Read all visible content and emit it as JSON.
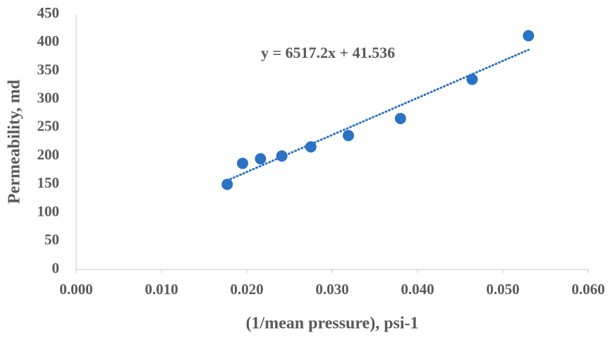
{
  "chart_data": {
    "type": "scatter",
    "x_label": "(1/mean pressure), psi-1",
    "y_label": "Permeability, md",
    "trendline_label": "y = 6517.2x + 41.536",
    "series": [
      {
        "color": "#2a72c4",
        "x": [
          0.0177,
          0.0195,
          0.0216,
          0.0241,
          0.0275,
          0.0319,
          0.038,
          0.0464,
          0.053
        ],
        "values": [
          150,
          187,
          195,
          200,
          216,
          236,
          266,
          335,
          412
        ]
      }
    ],
    "trendline": {
      "type": "linear",
      "style": "dotted"
    },
    "xlim": [
      0,
      0.06
    ],
    "xticks": [
      {
        "value": 0,
        "label": "0.000"
      },
      {
        "value": 0.01,
        "label": "0.010"
      },
      {
        "value": 0.02,
        "label": "0.020"
      },
      {
        "value": 0.03,
        "label": "0.030"
      },
      {
        "value": 0.04,
        "label": "0.040"
      },
      {
        "value": 0.05,
        "label": "0.050"
      },
      {
        "value": 0.06,
        "label": "0.060"
      }
    ],
    "ylim": [
      0,
      450
    ],
    "yticks": [
      0,
      50,
      100,
      150,
      200,
      250,
      300,
      350,
      400,
      450
    ],
    "grid": false
  }
}
